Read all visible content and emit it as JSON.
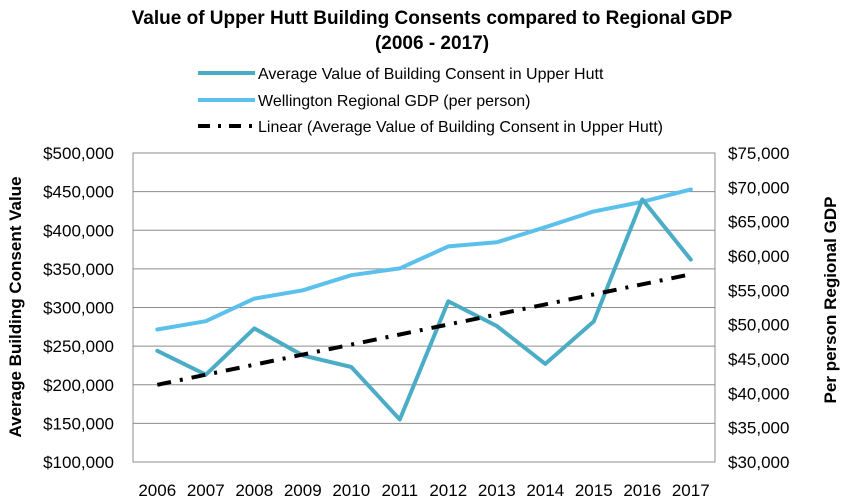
{
  "chart_data": {
    "type": "line",
    "title": "Value of Upper Hutt Building Consents compared to Regional GDP",
    "subtitle": "(2006 - 2017)",
    "x": [
      "2006",
      "2007",
      "2008",
      "2009",
      "2010",
      "2011",
      "2012",
      "2013",
      "2014",
      "2015",
      "2016",
      "2017"
    ],
    "ylabel": "Average Building Consent Value",
    "y2label": "Per person Regional GDP",
    "ylim": [
      100000,
      500000
    ],
    "y2lim": [
      30000,
      75000
    ],
    "yticks": [
      "$100,000",
      "$150,000",
      "$200,000",
      "$250,000",
      "$300,000",
      "$350,000",
      "$400,000",
      "$450,000",
      "$500,000"
    ],
    "y2ticks": [
      "$30,000",
      "$35,000",
      "$40,000",
      "$45,000",
      "$50,000",
      "$55,000",
      "$60,000",
      "$65,000",
      "$70,000",
      "$75,000"
    ],
    "grid": true,
    "legend_position": "top",
    "series": [
      {
        "name": "Average Value of Building Consent in Upper Hutt",
        "axis": "left",
        "style": "solid",
        "color": "#4bacc6",
        "values": [
          244000,
          213000,
          273000,
          238000,
          223000,
          155000,
          308000,
          276000,
          227000,
          282000,
          440000,
          362000
        ]
      },
      {
        "name": "Wellington Regional GDP (per person)",
        "axis": "right",
        "style": "solid",
        "color": "#5bc0eb",
        "values": [
          49300,
          50500,
          53800,
          55000,
          57200,
          58200,
          61400,
          62000,
          64200,
          66500,
          67900,
          69700
        ]
      },
      {
        "name": "Linear (Average Value of Building Consent in Upper Hutt)",
        "axis": "left",
        "style": "dash-dot",
        "color": "#000000",
        "values": [
          200000,
          213000,
          226000,
          239000,
          252000,
          265000,
          278000,
          291000,
          304000,
          317000,
          330000,
          343000
        ]
      }
    ]
  }
}
